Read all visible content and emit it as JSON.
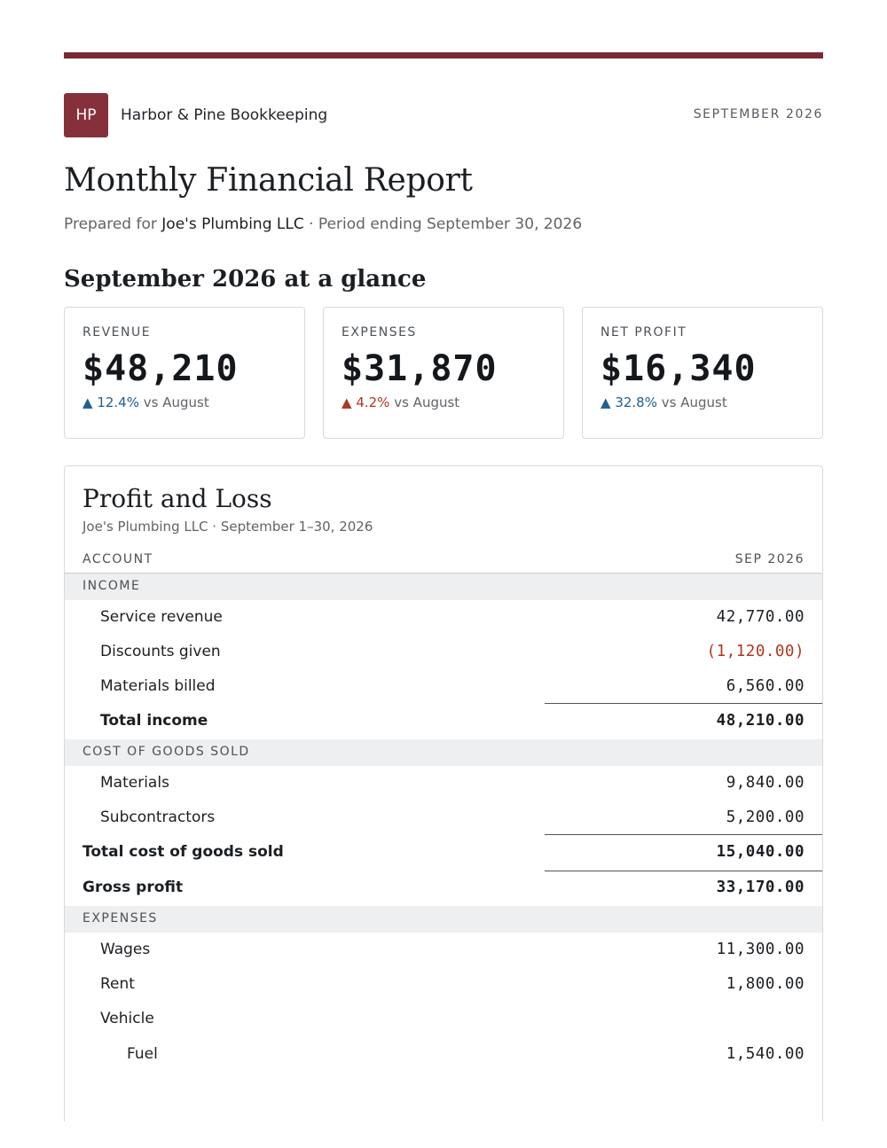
{
  "header": {
    "logo_initials": "HP",
    "firm_name": "Harbor & Pine Bookkeeping",
    "report_period": "SEPTEMBER 2026"
  },
  "title": "Monthly Financial Report",
  "subtitle": {
    "prefix": "Prepared for",
    "client": "Joe's Plumbing LLC",
    "suffix": "· Period ending September 30, 2026"
  },
  "glance": {
    "heading": "September 2026 at a glance",
    "cards": [
      {
        "label": "REVENUE",
        "value": "$48,210",
        "arrow": "▲",
        "change": "12.4%",
        "compare": "vs August",
        "direction": "up",
        "color": "#215f8e"
      },
      {
        "label": "EXPENSES",
        "value": "$31,870",
        "arrow": "▲",
        "change": "4.2%",
        "compare": "vs August",
        "direction": "up",
        "color": "#b2361f"
      },
      {
        "label": "NET PROFIT",
        "value": "$16,340",
        "arrow": "▲",
        "change": "32.8%",
        "compare": "vs August",
        "direction": "up",
        "color": "#215f8e"
      }
    ]
  },
  "pl": {
    "title": "Profit and Loss",
    "subtitle": "Joe's Plumbing LLC · September 1–30, 2026",
    "col_account": "ACCOUNT",
    "col_period": "SEP 2026",
    "income": {
      "heading": "INCOME",
      "items": [
        {
          "label": "Service revenue",
          "amount": "42,770.00"
        },
        {
          "label": "Discounts given",
          "amount": "(1,120.00)"
        },
        {
          "label": "Materials billed",
          "amount": "6,560.00"
        }
      ],
      "total_label": "Total income",
      "total_amount": "48,210.00"
    },
    "cogs": {
      "heading": "COST OF GOODS SOLD",
      "items": [
        {
          "label": "Materials",
          "amount": "9,840.00"
        },
        {
          "label": "Subcontractors",
          "amount": "5,200.00"
        }
      ],
      "total_label": "Total cost of goods sold",
      "total_amount": "15,040.00"
    },
    "gross_profit": {
      "label": "Gross profit",
      "amount": "33,170.00"
    },
    "expenses": {
      "heading": "EXPENSES",
      "items": [
        {
          "label": "Wages",
          "amount": "11,300.00"
        },
        {
          "label": "Rent",
          "amount": "1,800.00"
        },
        {
          "label": "Vehicle",
          "amount": ""
        }
      ],
      "sub_items": [
        {
          "label": "Fuel",
          "amount": "1,540.00"
        }
      ]
    }
  }
}
